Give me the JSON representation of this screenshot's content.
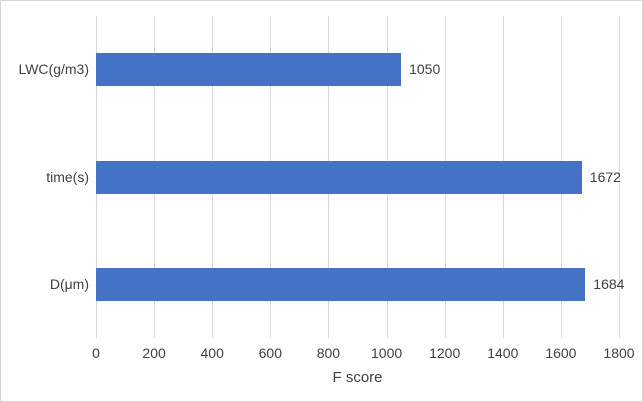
{
  "chart_data": {
    "type": "bar",
    "orientation": "horizontal",
    "title": "",
    "xlabel": "F score",
    "ylabel": "",
    "categories_top_to_bottom": [
      "LWC(g/m3)",
      "time(s)",
      "D(μm)"
    ],
    "values_top_to_bottom": [
      1050,
      1672,
      1684
    ],
    "data_labels": [
      "1050",
      "1672",
      "1684"
    ],
    "x_ticks": [
      0,
      200,
      400,
      600,
      800,
      1000,
      1200,
      1400,
      1600,
      1800
    ],
    "xlim": [
      0,
      1800
    ],
    "grid": "vertical-on",
    "legend": "none",
    "colors": {
      "bar_fill": "#4472C4",
      "gridline": "#d9d9d9",
      "text": "#404040",
      "chart_border": "#d6d6d6",
      "background": "#ffffff"
    }
  }
}
